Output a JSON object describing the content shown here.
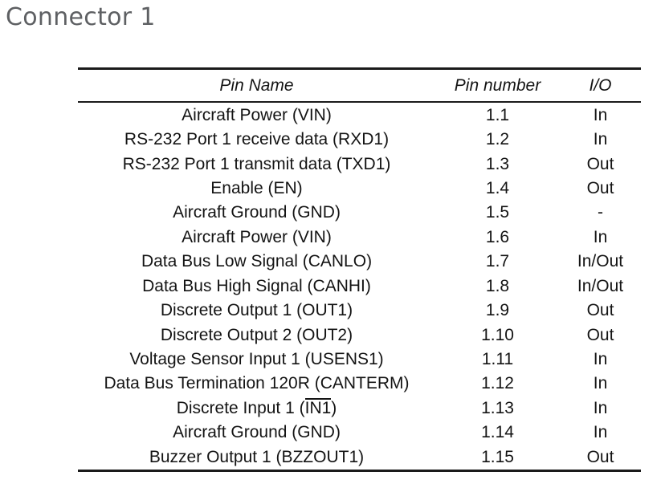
{
  "page": {
    "title": "Connector 1"
  },
  "colors": {
    "title_text": "#5e6063",
    "body_text": "#141414",
    "table_rule": "#1a1a1a",
    "background": "#ffffff"
  },
  "table": {
    "headers": {
      "name": "Pin Name",
      "number": "Pin number",
      "io": "I/O"
    },
    "rows": [
      {
        "name": "Aircraft Power (VIN)",
        "number": "1.1",
        "io": "In"
      },
      {
        "name": "RS-232 Port 1 receive data (RXD1)",
        "number": "1.2",
        "io": "In"
      },
      {
        "name": "RS-232 Port 1 transmit data (TXD1)",
        "number": "1.3",
        "io": "Out"
      },
      {
        "name": "Enable (EN)",
        "number": "1.4",
        "io": "Out"
      },
      {
        "name": "Aircraft Ground (GND)",
        "number": "1.5",
        "io": "-"
      },
      {
        "name": "Aircraft Power (VIN)",
        "number": "1.6",
        "io": "In"
      },
      {
        "name": "Data Bus Low Signal (CANLO)",
        "number": "1.7",
        "io": "In/Out"
      },
      {
        "name": "Data Bus High Signal (CANHI)",
        "number": "1.8",
        "io": "In/Out"
      },
      {
        "name": "Discrete Output 1 (OUT1)",
        "number": "1.9",
        "io": "Out"
      },
      {
        "name": "Discrete Output 2 (OUT2)",
        "number": "1.10",
        "io": "Out"
      },
      {
        "name": "Voltage Sensor Input 1 (USENS1)",
        "number": "1.11",
        "io": "In"
      },
      {
        "name": "Data Bus Termination 120R (CANTERM)",
        "number": "1.12",
        "io": "In"
      },
      {
        "name_prefix": "Discrete Input 1 (",
        "name_overline": "IN1",
        "name_suffix": ")",
        "number": "1.13",
        "io": "In"
      },
      {
        "name": "Aircraft Ground (GND)",
        "number": "1.14",
        "io": "In"
      },
      {
        "name": "Buzzer Output 1 (BZZOUT1)",
        "number": "1.15",
        "io": "Out"
      }
    ]
  }
}
